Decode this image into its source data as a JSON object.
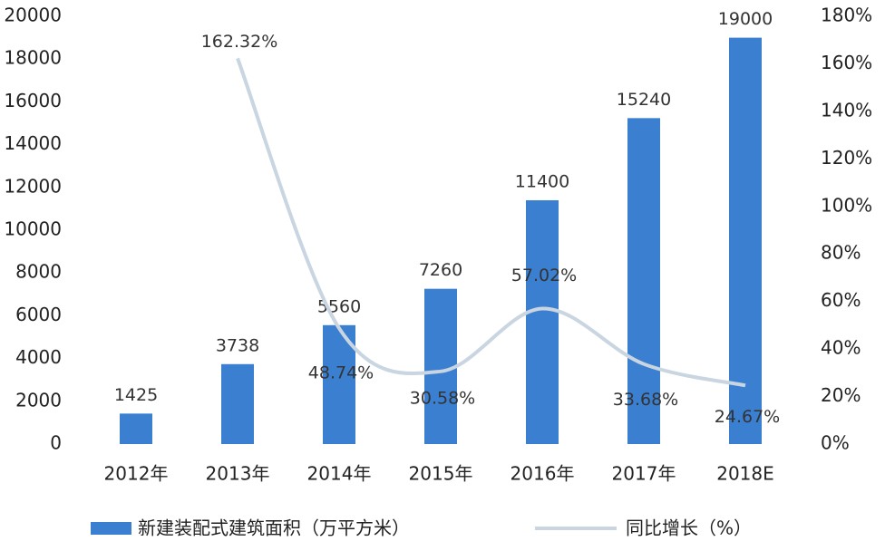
{
  "chart_data": {
    "type": "bar",
    "categories": [
      "2012年",
      "2013年",
      "2014年",
      "2015年",
      "2016年",
      "2017年",
      "2018E"
    ],
    "series": [
      {
        "name": "新建装配式建筑面积（万平方米）",
        "color": "#3a7fd0",
        "values": [
          1425,
          3738,
          5560,
          7260,
          11400,
          15240,
          19000
        ]
      },
      {
        "name": "同比增长（%）",
        "color": "#c9d5e0",
        "type": "line",
        "axis": "y2",
        "values": [
          null,
          162.32,
          48.74,
          30.58,
          57.02,
          33.68,
          24.67
        ],
        "value_labels": [
          null,
          "162.32%",
          "48.74%",
          "30.58%",
          "57.02%",
          "33.68%",
          "24.67%"
        ]
      }
    ],
    "ylim": [
      0,
      20000
    ],
    "yticks": [
      0,
      2000,
      4000,
      6000,
      8000,
      10000,
      12000,
      14000,
      16000,
      18000,
      20000
    ],
    "y2lim": [
      0,
      180
    ],
    "y2ticks": [
      {
        "value": 0,
        "label": "0%"
      },
      {
        "value": 20,
        "label": "20%"
      },
      {
        "value": 40,
        "label": "40%"
      },
      {
        "value": 60,
        "label": "60%"
      },
      {
        "value": 80,
        "label": "80%"
      },
      {
        "value": 100,
        "label": "100%"
      },
      {
        "value": 120,
        "label": "120%"
      },
      {
        "value": 140,
        "label": "140%"
      },
      {
        "value": 160,
        "label": "160%"
      },
      {
        "value": 180,
        "label": "180%"
      }
    ],
    "legend": "bottom"
  }
}
